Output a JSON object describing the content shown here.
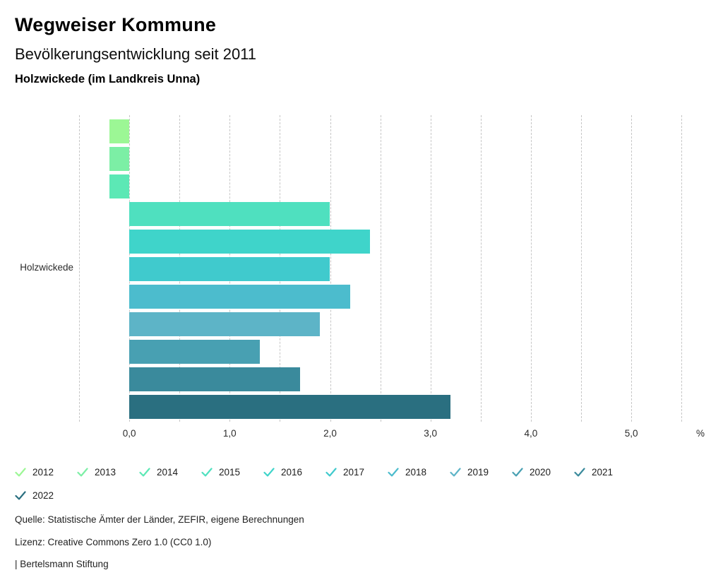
{
  "header": {
    "title": "Wegweiser Kommune",
    "subtitle": "Bevölkerungsentwicklung seit 2011",
    "region": "Holzwickede (im Landkreis Unna)"
  },
  "chart_data": {
    "type": "bar",
    "orientation": "horizontal",
    "category": "Holzwickede",
    "unit_label": "%",
    "xlim": [
      -0.5,
      5.5
    ],
    "grid_step": 0.5,
    "grid_style": "dashed-vertical",
    "grid_color": "#c6c6c6",
    "legend_position": "bottom",
    "xticks": [
      {
        "value": 0,
        "label": "0,0"
      },
      {
        "value": 1,
        "label": "1,0"
      },
      {
        "value": 2,
        "label": "2,0"
      },
      {
        "value": 3,
        "label": "3,0"
      },
      {
        "value": 4,
        "label": "4,0"
      },
      {
        "value": 5,
        "label": "5,0"
      }
    ],
    "series": [
      {
        "name": "2012",
        "value": -0.2,
        "color": "#9cf795"
      },
      {
        "name": "2013",
        "value": -0.2,
        "color": "#7cefa5"
      },
      {
        "name": "2014",
        "value": -0.2,
        "color": "#5ce8b5"
      },
      {
        "name": "2015",
        "value": 2.0,
        "color": "#4fe0bf"
      },
      {
        "name": "2016",
        "value": 2.4,
        "color": "#3fd4ca"
      },
      {
        "name": "2017",
        "value": 2.0,
        "color": "#40cacd"
      },
      {
        "name": "2018",
        "value": 2.2,
        "color": "#4cbccd"
      },
      {
        "name": "2019",
        "value": 1.9,
        "color": "#5db4c7"
      },
      {
        "name": "2020",
        "value": 1.3,
        "color": "#48a0b2"
      },
      {
        "name": "2021",
        "value": 1.7,
        "color": "#3a8a9c"
      },
      {
        "name": "2022",
        "value": 3.2,
        "color": "#2a6f80"
      }
    ],
    "legend_rows": [
      10,
      1
    ]
  },
  "footer": {
    "source": "Quelle: Statistische Ämter der Länder, ZEFIR, eigene Berechnungen",
    "license": "Lizenz: Creative Commons Zero 1.0 (CC0 1.0)",
    "attribution": "| Bertelsmann Stiftung"
  }
}
